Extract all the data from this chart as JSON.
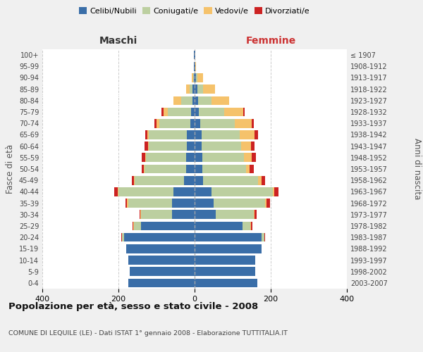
{
  "age_groups": [
    "0-4",
    "5-9",
    "10-14",
    "15-19",
    "20-24",
    "25-29",
    "30-34",
    "35-39",
    "40-44",
    "45-49",
    "50-54",
    "55-59",
    "60-64",
    "65-69",
    "70-74",
    "75-79",
    "80-84",
    "85-89",
    "90-94",
    "95-99",
    "100+"
  ],
  "birth_years": [
    "2003-2007",
    "1998-2002",
    "1993-1997",
    "1988-1992",
    "1983-1987",
    "1978-1982",
    "1973-1977",
    "1968-1972",
    "1963-1967",
    "1958-1962",
    "1953-1957",
    "1948-1952",
    "1943-1947",
    "1938-1942",
    "1933-1937",
    "1928-1932",
    "1923-1927",
    "1918-1922",
    "1913-1917",
    "1908-1912",
    "≤ 1907"
  ],
  "maschi": {
    "celibi": [
      175,
      170,
      175,
      180,
      185,
      140,
      60,
      60,
      55,
      28,
      22,
      22,
      20,
      20,
      12,
      10,
      5,
      5,
      2,
      1,
      1
    ],
    "coniugati": [
      0,
      0,
      0,
      0,
      5,
      20,
      80,
      115,
      145,
      130,
      110,
      105,
      100,
      100,
      80,
      60,
      30,
      8,
      2,
      0,
      0
    ],
    "vedovi": [
      0,
      0,
      0,
      0,
      1,
      1,
      2,
      2,
      2,
      2,
      2,
      2,
      3,
      5,
      8,
      12,
      20,
      10,
      3,
      0,
      0
    ],
    "divorziati": [
      0,
      0,
      0,
      0,
      1,
      2,
      3,
      5,
      10,
      5,
      5,
      10,
      8,
      5,
      5,
      5,
      0,
      0,
      0,
      0,
      0
    ]
  },
  "femmine": {
    "nubili": [
      165,
      160,
      160,
      175,
      175,
      125,
      55,
      50,
      45,
      22,
      20,
      20,
      18,
      18,
      15,
      12,
      10,
      8,
      3,
      1,
      1
    ],
    "coniugate": [
      0,
      0,
      0,
      0,
      8,
      22,
      100,
      135,
      160,
      145,
      115,
      110,
      105,
      100,
      90,
      65,
      35,
      15,
      5,
      0,
      0
    ],
    "vedove": [
      0,
      0,
      0,
      0,
      1,
      2,
      3,
      3,
      5,
      8,
      10,
      20,
      25,
      40,
      45,
      50,
      45,
      30,
      15,
      2,
      0
    ],
    "divorziate": [
      0,
      0,
      0,
      0,
      1,
      3,
      5,
      10,
      10,
      10,
      10,
      12,
      10,
      8,
      5,
      5,
      0,
      0,
      0,
      0,
      0
    ]
  },
  "colors": {
    "celibi": "#3a6ea8",
    "coniugati": "#bccfa0",
    "vedovi": "#f5c26b",
    "divorziati": "#cc2222"
  },
  "xlim": 400,
  "title": "Popolazione per età, sesso e stato civile - 2008",
  "subtitle": "COMUNE DI LEQUILE (LE) - Dati ISTAT 1° gennaio 2008 - Elaborazione TUTTITALIA.IT",
  "ylabel_left": "Fasce di età",
  "ylabel_right": "Anni di nascita",
  "xlabel_maschi": "Maschi",
  "xlabel_femmine": "Femmine",
  "bg_color": "#f0f0f0",
  "plot_bg": "#ffffff",
  "grid_color": "#cccccc"
}
